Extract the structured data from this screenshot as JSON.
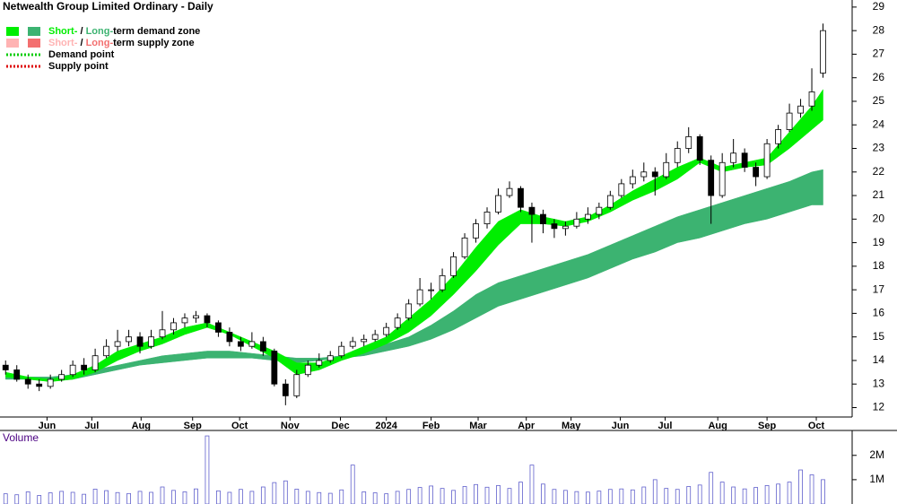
{
  "chart_data": {
    "type": "candlestick",
    "title": "Netwealth Group Limited Ordinary - Daily",
    "x": [
      0,
      1,
      2,
      3,
      4,
      5,
      6,
      7,
      8,
      9,
      10,
      11,
      12,
      13,
      14,
      15,
      16,
      17,
      18,
      19,
      20,
      21,
      22,
      23,
      24,
      25,
      26,
      27,
      28,
      29,
      30,
      31,
      32,
      33,
      34,
      35,
      36,
      37,
      38,
      39,
      40,
      41,
      42,
      43,
      44,
      45,
      46,
      47,
      48,
      49,
      50,
      51,
      52,
      53,
      54,
      55,
      56,
      57,
      58,
      59,
      60,
      61,
      62,
      63,
      64,
      65,
      66,
      67,
      68,
      69,
      70,
      71,
      72,
      73
    ],
    "xlim": [
      -0.5,
      74
    ],
    "xticks": [
      {
        "value": 3.7,
        "label": "Jun"
      },
      {
        "value": 7.7,
        "label": "Jul"
      },
      {
        "value": 12.1,
        "label": "Aug"
      },
      {
        "value": 16.7,
        "label": "Sep"
      },
      {
        "value": 20.9,
        "label": "Oct"
      },
      {
        "value": 25.4,
        "label": "Nov"
      },
      {
        "value": 29.9,
        "label": "Dec"
      },
      {
        "value": 34.0,
        "label": "2024"
      },
      {
        "value": 38.0,
        "label": "Feb"
      },
      {
        "value": 42.2,
        "label": "Mar"
      },
      {
        "value": 46.5,
        "label": "Apr"
      },
      {
        "value": 50.5,
        "label": "May"
      },
      {
        "value": 54.9,
        "label": "Jun"
      },
      {
        "value": 58.9,
        "label": "Jul"
      },
      {
        "value": 63.6,
        "label": "Aug"
      },
      {
        "value": 68.0,
        "label": "Sep"
      },
      {
        "value": 72.4,
        "label": "Oct"
      }
    ],
    "ylim": [
      11.6,
      29.3
    ],
    "yticks": [
      12,
      13,
      14,
      15,
      16,
      17,
      18,
      19,
      20,
      21,
      22,
      23,
      24,
      25,
      26,
      27,
      28,
      29
    ],
    "candles": [
      [
        13.8,
        14.0,
        13.4,
        13.6
      ],
      [
        13.6,
        13.8,
        13.1,
        13.2
      ],
      [
        13.2,
        13.4,
        12.8,
        13.0
      ],
      [
        13.0,
        13.2,
        12.7,
        12.9
      ],
      [
        12.9,
        13.4,
        12.8,
        13.2
      ],
      [
        13.2,
        13.6,
        13.1,
        13.4
      ],
      [
        13.4,
        14.0,
        13.3,
        13.8
      ],
      [
        13.8,
        14.1,
        13.4,
        13.6
      ],
      [
        13.6,
        14.5,
        13.5,
        14.2
      ],
      [
        14.2,
        14.9,
        14.1,
        14.6
      ],
      [
        14.6,
        15.3,
        14.4,
        14.8
      ],
      [
        14.8,
        15.3,
        14.6,
        15.0
      ],
      [
        15.0,
        15.2,
        14.3,
        14.6
      ],
      [
        14.6,
        15.3,
        14.5,
        15.0
      ],
      [
        15.0,
        16.1,
        14.9,
        15.3
      ],
      [
        15.3,
        15.8,
        15.1,
        15.6
      ],
      [
        15.6,
        16.0,
        15.4,
        15.8
      ],
      [
        15.8,
        16.1,
        15.6,
        15.9
      ],
      [
        15.9,
        16.0,
        15.4,
        15.6
      ],
      [
        15.6,
        15.7,
        15.0,
        15.2
      ],
      [
        15.2,
        15.4,
        14.6,
        14.8
      ],
      [
        14.8,
        15.0,
        14.4,
        14.6
      ],
      [
        14.6,
        15.2,
        14.5,
        14.8
      ],
      [
        14.8,
        15.0,
        14.2,
        14.4
      ],
      [
        14.4,
        14.5,
        12.9,
        13.0
      ],
      [
        13.0,
        13.2,
        12.1,
        12.5
      ],
      [
        12.5,
        13.6,
        12.4,
        13.4
      ],
      [
        13.4,
        14.0,
        13.3,
        13.8
      ],
      [
        13.8,
        14.3,
        13.7,
        14.0
      ],
      [
        14.0,
        14.4,
        13.9,
        14.2
      ],
      [
        14.2,
        14.8,
        14.1,
        14.6
      ],
      [
        14.6,
        15.0,
        14.5,
        14.8
      ],
      [
        14.8,
        15.1,
        14.6,
        14.9
      ],
      [
        14.9,
        15.3,
        14.8,
        15.1
      ],
      [
        15.1,
        15.6,
        15.0,
        15.4
      ],
      [
        15.4,
        16.0,
        15.3,
        15.8
      ],
      [
        15.8,
        16.6,
        15.7,
        16.4
      ],
      [
        16.4,
        17.5,
        16.3,
        17.0
      ],
      [
        17.0,
        17.3,
        16.6,
        17.0
      ],
      [
        17.0,
        17.9,
        16.9,
        17.6
      ],
      [
        17.6,
        18.6,
        17.5,
        18.4
      ],
      [
        18.4,
        19.4,
        18.3,
        19.2
      ],
      [
        19.2,
        20.0,
        19.0,
        19.8
      ],
      [
        19.8,
        20.5,
        19.6,
        20.3
      ],
      [
        20.3,
        21.3,
        20.2,
        21.0
      ],
      [
        21.0,
        21.6,
        20.9,
        21.3
      ],
      [
        21.3,
        21.4,
        20.3,
        20.5
      ],
      [
        20.5,
        20.7,
        19.0,
        20.2
      ],
      [
        20.2,
        20.4,
        19.4,
        19.8
      ],
      [
        19.8,
        20.0,
        19.2,
        19.6
      ],
      [
        19.6,
        19.9,
        19.3,
        19.7
      ],
      [
        19.7,
        20.3,
        19.6,
        20.0
      ],
      [
        20.0,
        20.5,
        19.8,
        20.2
      ],
      [
        20.2,
        20.7,
        20.0,
        20.5
      ],
      [
        20.5,
        21.2,
        20.4,
        21.0
      ],
      [
        21.0,
        21.7,
        20.9,
        21.5
      ],
      [
        21.5,
        22.1,
        21.3,
        21.8
      ],
      [
        21.8,
        22.4,
        21.6,
        22.0
      ],
      [
        22.0,
        22.2,
        21.0,
        21.8
      ],
      [
        21.8,
        22.8,
        21.7,
        22.4
      ],
      [
        22.4,
        23.3,
        22.2,
        23.0
      ],
      [
        23.0,
        23.9,
        22.8,
        23.5
      ],
      [
        23.5,
        23.6,
        22.3,
        22.5
      ],
      [
        22.5,
        22.7,
        19.8,
        21.0
      ],
      [
        21.0,
        22.8,
        20.9,
        22.4
      ],
      [
        22.4,
        23.4,
        22.2,
        22.8
      ],
      [
        22.8,
        23.0,
        22.0,
        22.2
      ],
      [
        22.2,
        22.4,
        21.4,
        21.8
      ],
      [
        21.8,
        23.4,
        21.7,
        23.2
      ],
      [
        23.2,
        24.0,
        23.0,
        23.8
      ],
      [
        23.8,
        24.9,
        23.7,
        24.5
      ],
      [
        24.5,
        25.1,
        24.3,
        24.8
      ],
      [
        24.8,
        26.4,
        24.6,
        25.4
      ],
      [
        26.2,
        28.3,
        26.0,
        28.0
      ]
    ],
    "bands": [
      {
        "color": "#3cb371",
        "x": [
          0,
          2,
          4,
          6,
          8,
          10,
          12,
          14,
          16,
          18,
          20,
          22,
          24,
          26,
          28,
          30,
          32,
          34,
          36,
          38,
          40,
          42,
          44,
          46,
          48,
          50,
          52,
          54,
          56,
          58,
          60,
          62,
          64,
          66,
          68,
          70,
          72,
          73
        ],
        "upper": [
          13.4,
          13.3,
          13.3,
          13.4,
          13.6,
          13.8,
          14.0,
          14.2,
          14.3,
          14.4,
          14.4,
          14.3,
          14.2,
          14.1,
          14.1,
          14.2,
          14.4,
          14.7,
          15.0,
          15.5,
          16.1,
          16.8,
          17.3,
          17.6,
          17.9,
          18.2,
          18.5,
          18.9,
          19.3,
          19.7,
          20.1,
          20.4,
          20.7,
          21.0,
          21.3,
          21.6,
          22.0,
          22.1
        ],
        "lower": [
          13.2,
          13.2,
          13.2,
          13.2,
          13.4,
          13.6,
          13.8,
          13.9,
          14.0,
          14.1,
          14.1,
          14.1,
          14.0,
          13.9,
          14.0,
          14.1,
          14.2,
          14.4,
          14.6,
          14.9,
          15.3,
          15.8,
          16.3,
          16.6,
          16.9,
          17.2,
          17.5,
          17.9,
          18.3,
          18.6,
          19.0,
          19.2,
          19.5,
          19.8,
          20.0,
          20.3,
          20.6,
          20.6
        ]
      },
      {
        "color": "#00ee00",
        "x": [
          0,
          2,
          4,
          6,
          8,
          10,
          12,
          14,
          16,
          18,
          20,
          22,
          24,
          26,
          28,
          30,
          32,
          34,
          36,
          38,
          40,
          42,
          44,
          46,
          48,
          50,
          52,
          54,
          56,
          58,
          60,
          62,
          64,
          66,
          68,
          70,
          72,
          73
        ],
        "upper": [
          13.5,
          13.3,
          13.2,
          13.4,
          13.8,
          14.4,
          14.7,
          15.0,
          15.4,
          15.6,
          15.2,
          14.8,
          14.4,
          13.9,
          13.9,
          14.2,
          14.6,
          15.0,
          15.8,
          16.6,
          17.6,
          18.8,
          19.9,
          20.4,
          20.1,
          19.9,
          20.1,
          20.6,
          21.2,
          21.7,
          22.2,
          22.6,
          22.2,
          22.4,
          22.6,
          23.7,
          24.8,
          25.5
        ],
        "lower": [
          13.3,
          13.2,
          13.1,
          13.2,
          13.5,
          14.0,
          14.4,
          14.7,
          15.1,
          15.4,
          15.1,
          14.6,
          14.1,
          13.4,
          13.6,
          14.0,
          14.3,
          14.7,
          15.2,
          15.9,
          16.8,
          17.8,
          18.9,
          19.8,
          19.8,
          19.7,
          19.9,
          20.3,
          20.8,
          21.2,
          21.7,
          22.4,
          22.0,
          22.2,
          22.3,
          23.0,
          23.8,
          24.2
        ]
      }
    ],
    "legend": [
      {
        "labels": [
          "Short-",
          " / ",
          "Long-",
          "term demand zone"
        ],
        "colors": [
          "#00ee00",
          "#3cb371"
        ],
        "style": "box"
      },
      {
        "labels": [
          "Short-",
          " / ",
          "Long-",
          "term supply zone"
        ],
        "colors": [
          "#ffb3b3",
          "#f36f6f"
        ],
        "style": "box"
      },
      {
        "labels": [
          "Demand point"
        ],
        "colors": [
          "#00cc00"
        ],
        "style": "dots"
      },
      {
        "labels": [
          "Supply point"
        ],
        "colors": [
          "#dd0000"
        ],
        "style": "dots"
      }
    ],
    "volume": {
      "label": "Volume",
      "color": "#6060cc",
      "values": [
        420000,
        380000,
        500000,
        350000,
        460000,
        520000,
        480000,
        400000,
        610000,
        550000,
        470000,
        430000,
        520000,
        480000,
        700000,
        560000,
        500000,
        620000,
        2800000,
        540000,
        480000,
        600000,
        520000,
        700000,
        880000,
        950000,
        610000,
        520000,
        470000,
        440000,
        580000,
        1600000,
        500000,
        460000,
        420000,
        520000,
        600000,
        680000,
        740000,
        640000,
        560000,
        720000,
        800000,
        690000,
        760000,
        640000,
        900000,
        1600000,
        820000,
        600000,
        560000,
        510000,
        490000,
        530000,
        600000,
        620000,
        580000,
        700000,
        1000000,
        640000,
        600000,
        720000,
        780000,
        1300000,
        900000,
        700000,
        620000,
        680000,
        760000,
        820000,
        900000,
        1400000,
        1200000,
        1000000
      ],
      "ylim": [
        0,
        2950000
      ],
      "yticks": [
        {
          "value": 1000000,
          "label": "1M"
        },
        {
          "value": 2000000,
          "label": "2M"
        }
      ]
    }
  }
}
